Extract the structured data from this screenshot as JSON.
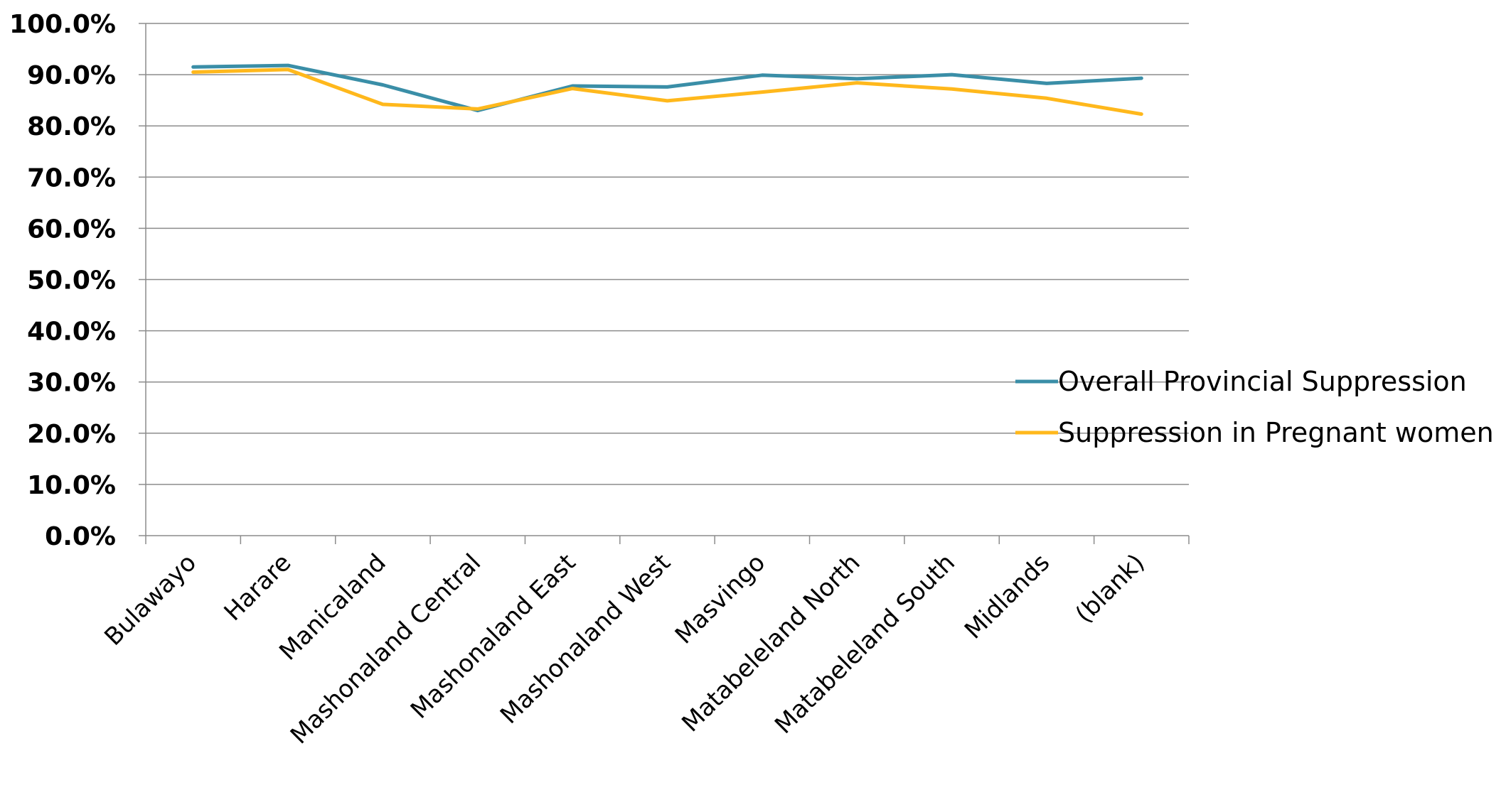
{
  "chart_data": {
    "type": "line",
    "categories": [
      "Bulawayo",
      "Harare",
      "Manicaland",
      "Mashonaland Central",
      "Mashonaland East",
      "Mashonaland West",
      "Masvingo",
      "Matabeleland North",
      "Matabeleland South",
      "Midlands",
      "(blank)"
    ],
    "series": [
      {
        "name": "Overall Provincial Suppression",
        "color": "#3a8ea7",
        "values": [
          91.5,
          91.8,
          88.0,
          83.0,
          87.8,
          87.6,
          89.9,
          89.2,
          90.0,
          88.3,
          89.3
        ]
      },
      {
        "name": "Suppression in Pregnant women",
        "color": "#ffb81c",
        "values": [
          90.5,
          91.0,
          84.2,
          83.3,
          87.3,
          84.9,
          86.6,
          88.4,
          87.2,
          85.4,
          82.3
        ]
      }
    ],
    "yticks": [
      "0.0%",
      "10.0%",
      "20.0%",
      "30.0%",
      "40.0%",
      "50.0%",
      "60.0%",
      "70.0%",
      "80.0%",
      "90.0%",
      "100.0%"
    ],
    "ylim": [
      0,
      100
    ],
    "y_format": "percent",
    "grid": true,
    "legend_position": "right",
    "title": "",
    "xlabel": "",
    "ylabel": ""
  }
}
